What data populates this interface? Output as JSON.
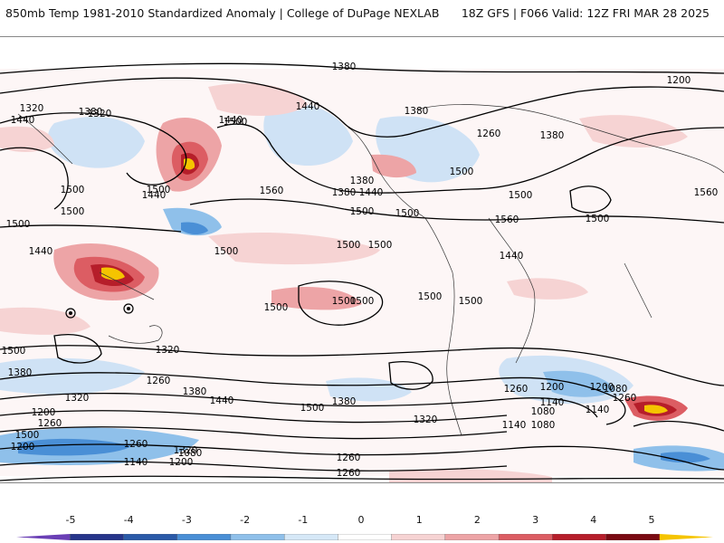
{
  "header": {
    "title": "850mb Temp 1981-2010 Standardized Anomaly | College of DuPage NEXLAB",
    "valid": "18Z GFS | F066 Valid: 12Z FRI MAR 28 2025"
  },
  "map": {
    "contour_labels": [
      "1380",
      "1200",
      "1440",
      "1440",
      "1380",
      "1320",
      "1320",
      "1500",
      "1440",
      "1380",
      "1260",
      "1380",
      "1500",
      "1380",
      "1500",
      "1440",
      "1440",
      "1500",
      "1500",
      "1560",
      "1500",
      "1500",
      "1500",
      "1500",
      "1500",
      "1560",
      "1500",
      "1500",
      "1500",
      "1500",
      "1500",
      "1500",
      "1500",
      "1500",
      "1560",
      "1440",
      "1440",
      "1380",
      "1500",
      "1380",
      "1320",
      "1200",
      "1260",
      "1500",
      "1320",
      "1260",
      "1380",
      "1440",
      "1500",
      "1380",
      "1320",
      "1260",
      "1200",
      "1140",
      "1080",
      "1200",
      "1080",
      "1260",
      "1140",
      "1080",
      "1140",
      "1200",
      "1260",
      "1320",
      "1200",
      "1140",
      "1260",
      "1080",
      "1260"
    ],
    "colors": {
      "neg_strong": "#2a5aa8",
      "neg_mid": "#6aa7df",
      "neg_light": "#cfe2f5",
      "pos_light": "#f7d5d5",
      "pos_mid": "#e9898d",
      "pos_strong": "#b61e2a",
      "pos_extreme": "#7a0a12",
      "yellow": "#f5c400"
    }
  },
  "colorbar": {
    "ticks": [
      "-5",
      "-4",
      "-3",
      "-2",
      "-1",
      "0",
      "1",
      "2",
      "3",
      "4",
      "5"
    ],
    "colors": [
      "#6a3fb5",
      "#26358a",
      "#2a5aa8",
      "#4a8fd6",
      "#8fc0ea",
      "#d6e8f7",
      "#ffffff",
      "#f6d3d3",
      "#eda4a6",
      "#dc5d63",
      "#b61e2a",
      "#7a0a12",
      "#f5c400"
    ]
  }
}
